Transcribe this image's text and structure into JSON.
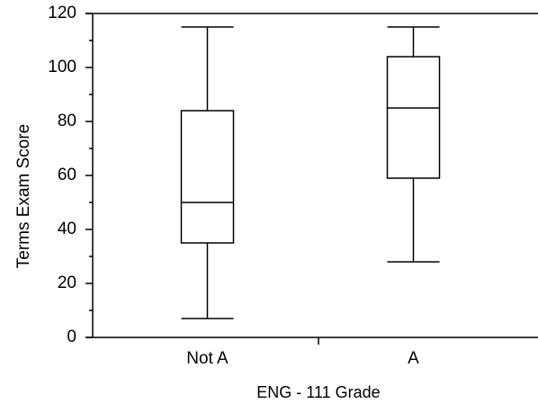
{
  "chart_data": {
    "type": "box",
    "x_label": "ENG - 111 Grade",
    "y_label": "Terms Exam Score",
    "categories": [
      "Not A",
      "A"
    ],
    "min": [
      7,
      28
    ],
    "q1": [
      35,
      59
    ],
    "median": [
      50,
      85
    ],
    "q3": [
      84,
      104
    ],
    "max": [
      115,
      115
    ],
    "ylim": [
      0,
      120
    ],
    "yticks": [
      0,
      20,
      40,
      60,
      80,
      100,
      120
    ],
    "minor_yticks": [
      10,
      30,
      50,
      70,
      90,
      110
    ],
    "color": "#000000"
  }
}
